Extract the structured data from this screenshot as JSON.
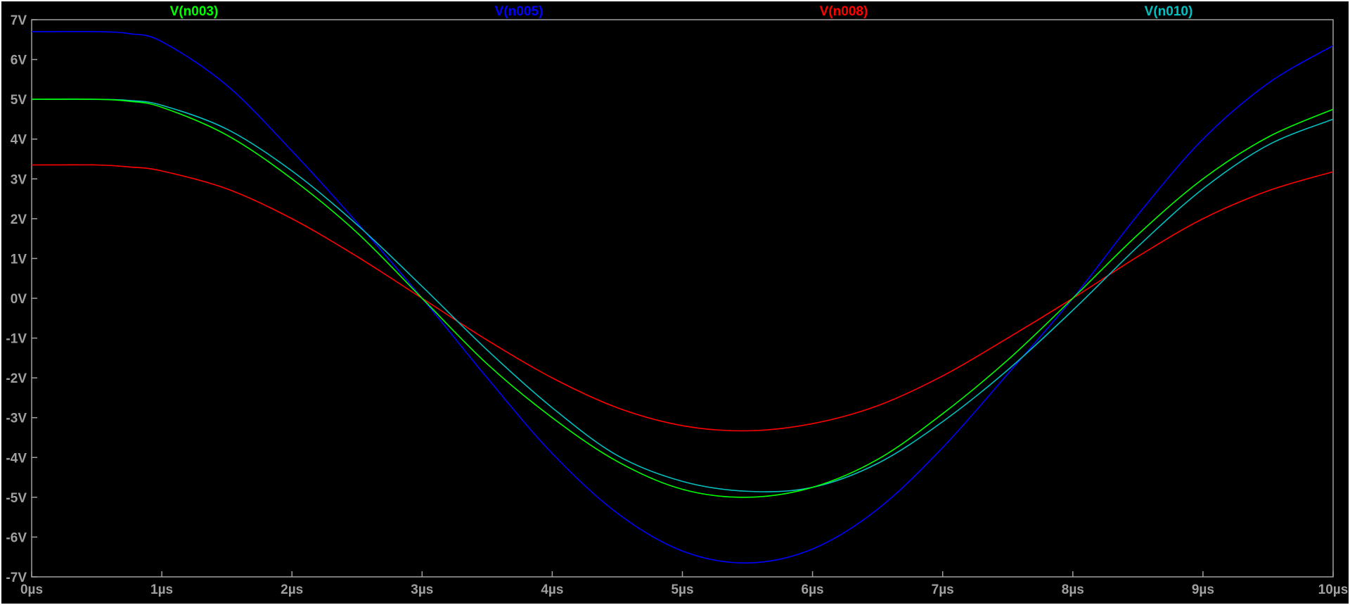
{
  "chart_data": {
    "type": "line",
    "x_unit": "µs",
    "y_unit": "V",
    "xlim": [
      0,
      10
    ],
    "ylim": [
      -7,
      7
    ],
    "x_ticks": [
      "0µs",
      "1µs",
      "2µs",
      "3µs",
      "4µs",
      "5µs",
      "6µs",
      "7µs",
      "8µs",
      "9µs",
      "10µs"
    ],
    "y_ticks": [
      "7V",
      "6V",
      "5V",
      "4V",
      "3V",
      "2V",
      "1V",
      "0V",
      "-1V",
      "-2V",
      "-3V",
      "-4V",
      "-5V",
      "-6V",
      "-7V"
    ],
    "grid": false,
    "legend_placement": "top",
    "background_color": "#000000",
    "frame_color": "#a0a0a0",
    "series": [
      {
        "name": "V(n003)",
        "color": "#00ff00",
        "x": [
          0,
          0.5,
          0.75,
          1,
          1.5,
          2,
          2.5,
          3,
          3.5,
          4,
          4.5,
          5,
          5.5,
          6,
          6.5,
          7,
          7.5,
          8,
          8.5,
          9,
          9.5,
          10
        ],
        "y": [
          5.0,
          5.0,
          4.95,
          4.8,
          4.1,
          3.0,
          1.65,
          0.0,
          -1.65,
          -3.0,
          -4.1,
          -4.8,
          -5.0,
          -4.75,
          -4.05,
          -2.9,
          -1.55,
          0.0,
          1.6,
          3.0,
          4.05,
          4.75
        ]
      },
      {
        "name": "V(n005)",
        "color": "#0000ff",
        "x": [
          0,
          0.5,
          0.75,
          1,
          1.5,
          2,
          2.5,
          3,
          3.5,
          4,
          4.5,
          5,
          5.5,
          6,
          6.5,
          7,
          7.5,
          8,
          8.5,
          9,
          9.5,
          10
        ],
        "y": [
          6.7,
          6.7,
          6.65,
          6.45,
          5.35,
          3.7,
          1.9,
          0.0,
          -2.0,
          -3.9,
          -5.4,
          -6.35,
          -6.65,
          -6.3,
          -5.3,
          -3.75,
          -1.9,
          0.0,
          2.1,
          4.0,
          5.4,
          6.35
        ]
      },
      {
        "name": "V(n008)",
        "color": "#ff0000",
        "x": [
          0,
          0.5,
          0.75,
          1,
          1.5,
          2,
          2.5,
          3,
          3.5,
          4,
          4.5,
          5,
          5.5,
          6,
          6.5,
          7,
          7.5,
          8,
          8.5,
          9,
          9.5,
          10
        ],
        "y": [
          3.35,
          3.35,
          3.3,
          3.2,
          2.75,
          2.0,
          1.05,
          0.0,
          -1.05,
          -2.0,
          -2.75,
          -3.2,
          -3.33,
          -3.15,
          -2.7,
          -1.95,
          -1.0,
          0.0,
          1.05,
          2.0,
          2.7,
          3.18
        ]
      },
      {
        "name": "V(n010)",
        "color": "#00c0c0",
        "x": [
          0,
          0.5,
          0.75,
          1,
          1.5,
          2,
          2.5,
          3,
          3.5,
          4,
          4.5,
          5,
          5.5,
          6,
          6.5,
          7,
          7.5,
          8,
          8.5,
          9,
          9.5,
          10
        ],
        "y": [
          5.0,
          5.0,
          4.97,
          4.85,
          4.25,
          3.2,
          1.85,
          0.3,
          -1.3,
          -2.75,
          -3.95,
          -4.6,
          -4.85,
          -4.75,
          -4.15,
          -3.1,
          -1.8,
          -0.3,
          1.3,
          2.75,
          3.85,
          4.5
        ]
      }
    ]
  }
}
